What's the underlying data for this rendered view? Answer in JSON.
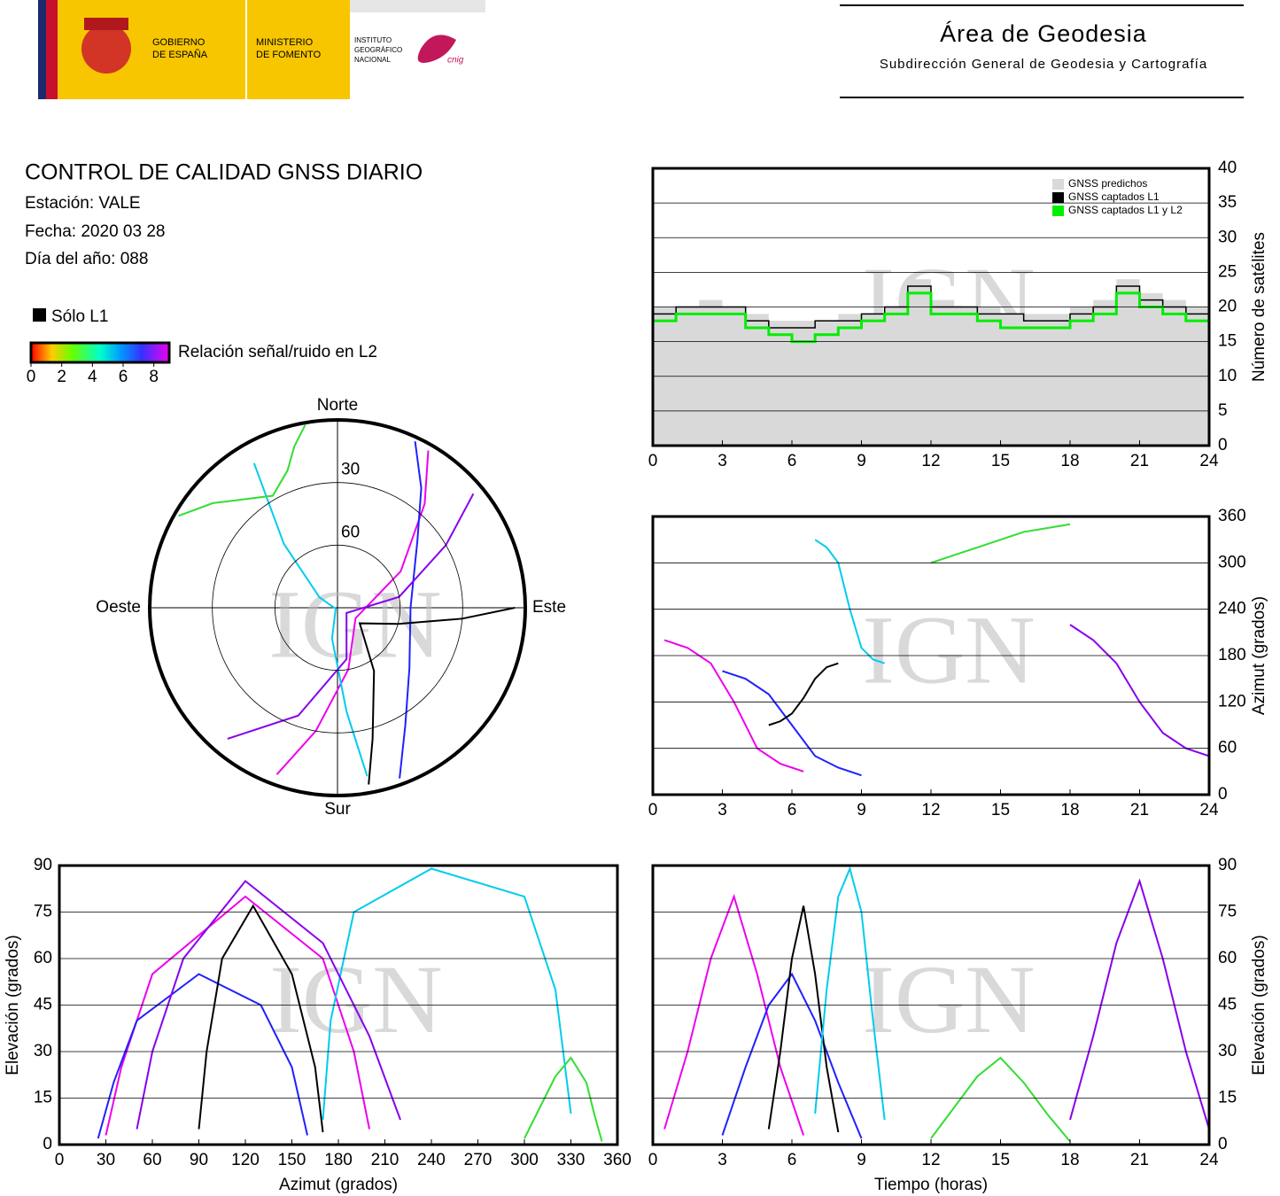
{
  "header": {
    "gov": [
      "GOBIERNO",
      "DE ESPAÑA"
    ],
    "ministry": [
      "MINISTERIO",
      "DE FOMENTO"
    ],
    "institute": [
      "INSTITUTO",
      "GEOGRÁFICO",
      "NACIONAL"
    ],
    "cnig": "cnig",
    "title": "Área de Geodesia",
    "subtitle": "Subdirección General de Geodesia y Cartografía"
  },
  "info": {
    "title": "CONTROL DE CALIDAD GNSS DIARIO",
    "station": "Estación: VALE",
    "date": "Fecha: 2020 03 28",
    "doy": "Día del año: 088"
  },
  "legend": {
    "solo_l1": "Sólo L1",
    "colorbar_label": "Relación señal/ruido en L2",
    "colorbar_lim": [
      0,
      9
    ],
    "colorbar_ticks": [
      0,
      2,
      4,
      6,
      8
    ]
  },
  "watermark": "IGN",
  "chart_data": [
    {
      "type": "step",
      "ylabel": "Número de satélites",
      "xlim": [
        0,
        24
      ],
      "xticks": [
        0,
        3,
        6,
        9,
        12,
        15,
        18,
        21,
        24
      ],
      "ylim": [
        0,
        40
      ],
      "yticks": [
        0,
        5,
        10,
        15,
        20,
        25,
        30,
        35,
        40
      ],
      "grid": true,
      "x": [
        0,
        1,
        2,
        3,
        4,
        5,
        6,
        7,
        8,
        9,
        10,
        11,
        12,
        13,
        14,
        15,
        16,
        17,
        18,
        19,
        20,
        21,
        22,
        23,
        24
      ],
      "series": [
        {
          "name": "GNSS predichos",
          "color": "#d9d9d9",
          "values": [
            20,
            20,
            21,
            20,
            19,
            18,
            18,
            18,
            19,
            19,
            20,
            24,
            21,
            20,
            20,
            19,
            19,
            19,
            20,
            21,
            24,
            22,
            21,
            20,
            20
          ]
        },
        {
          "name": "GNSS captados L1",
          "color": "#000000",
          "values": [
            19,
            20,
            20,
            20,
            18,
            17,
            17,
            18,
            18,
            19,
            20,
            23,
            20,
            20,
            19,
            19,
            18,
            18,
            19,
            20,
            23,
            21,
            20,
            19,
            19
          ]
        },
        {
          "name": "GNSS captados L1 y L2",
          "color": "#00ee00",
          "values": [
            18,
            19,
            19,
            19,
            17,
            16,
            15,
            16,
            17,
            18,
            19,
            22,
            19,
            19,
            18,
            17,
            17,
            17,
            18,
            19,
            22,
            20,
            19,
            18,
            18
          ]
        }
      ]
    },
    {
      "type": "polar",
      "directions": [
        "Norte",
        "Este",
        "Sur",
        "Oeste"
      ],
      "rticks": [
        30,
        60
      ],
      "rlim": [
        90,
        0
      ],
      "series": [
        {
          "color": "#ee00ee",
          "azimuth": [
            200,
            190,
            170,
            120,
            60,
            40,
            30
          ],
          "elevation": [
            5,
            30,
            60,
            80,
            55,
            25,
            3
          ]
        },
        {
          "color": "#2020ff",
          "azimuth": [
            160,
            150,
            130,
            90,
            50,
            35,
            25
          ],
          "elevation": [
            3,
            25,
            45,
            55,
            40,
            20,
            2
          ]
        },
        {
          "color": "#000000",
          "azimuth": [
            90,
            95,
            105,
            125,
            150,
            165,
            170
          ],
          "elevation": [
            5,
            30,
            60,
            77,
            55,
            25,
            4
          ]
        },
        {
          "color": "#00ccee",
          "azimuth": [
            330,
            320,
            300,
            240,
            190,
            175,
            170
          ],
          "elevation": [
            10,
            50,
            80,
            89,
            75,
            40,
            8
          ]
        },
        {
          "color": "#33dd33",
          "azimuth": [
            300,
            310,
            320,
            330,
            340,
            345,
            350
          ],
          "elevation": [
            2,
            12,
            22,
            28,
            20,
            10,
            1
          ]
        },
        {
          "color": "#8800ee",
          "azimuth": [
            220,
            200,
            170,
            120,
            80,
            60,
            50
          ],
          "elevation": [
            8,
            35,
            65,
            85,
            60,
            30,
            5
          ]
        }
      ]
    },
    {
      "type": "line",
      "ylabel": "Azimut (grados)",
      "xlim": [
        0,
        24
      ],
      "xticks": [
        0,
        3,
        6,
        9,
        12,
        15,
        18,
        21,
        24
      ],
      "ylim": [
        0,
        360
      ],
      "yticks": [
        0,
        60,
        120,
        180,
        240,
        300,
        360
      ],
      "grid": true,
      "series": [
        {
          "color": "#ee00ee",
          "x": [
            0.5,
            1.5,
            2.5,
            3.5,
            4.5,
            5.5,
            6.5
          ],
          "values": [
            200,
            190,
            170,
            120,
            60,
            40,
            30
          ]
        },
        {
          "color": "#2020ff",
          "x": [
            3,
            4,
            5,
            6,
            7,
            8,
            9
          ],
          "values": [
            160,
            150,
            130,
            90,
            50,
            35,
            25
          ]
        },
        {
          "color": "#000000",
          "x": [
            5,
            5.5,
            6,
            6.5,
            7,
            7.5,
            8
          ],
          "values": [
            90,
            95,
            105,
            125,
            150,
            165,
            170
          ]
        },
        {
          "color": "#00ccee",
          "x": [
            7,
            7.5,
            8,
            8.5,
            9,
            9.5,
            10
          ],
          "values": [
            330,
            320,
            300,
            240,
            190,
            175,
            170
          ]
        },
        {
          "color": "#33dd33",
          "x": [
            12,
            13,
            14,
            15,
            16,
            17,
            18
          ],
          "values": [
            300,
            310,
            320,
            330,
            340,
            345,
            350
          ]
        },
        {
          "color": "#8800ee",
          "x": [
            18,
            19,
            20,
            21,
            22,
            23,
            24
          ],
          "values": [
            220,
            200,
            170,
            120,
            80,
            60,
            50
          ]
        }
      ]
    },
    {
      "type": "line",
      "xlabel": "Azimut (grados)",
      "ylabel": "Elevación (grados)",
      "xlim": [
        0,
        360
      ],
      "xticks": [
        0,
        30,
        60,
        90,
        120,
        150,
        180,
        210,
        240,
        270,
        300,
        330,
        360
      ],
      "ylim": [
        0,
        90
      ],
      "yticks": [
        0,
        15,
        30,
        45,
        60,
        75,
        90
      ],
      "grid": true,
      "series": [
        {
          "color": "#ee00ee",
          "x": [
            200,
            190,
            170,
            120,
            60,
            40,
            30
          ],
          "values": [
            5,
            30,
            60,
            80,
            55,
            25,
            3
          ]
        },
        {
          "color": "#2020ff",
          "x": [
            160,
            150,
            130,
            90,
            50,
            35,
            25
          ],
          "values": [
            3,
            25,
            45,
            55,
            40,
            20,
            2
          ]
        },
        {
          "color": "#000000",
          "x": [
            90,
            95,
            105,
            125,
            150,
            165,
            170
          ],
          "values": [
            5,
            30,
            60,
            77,
            55,
            25,
            4
          ]
        },
        {
          "color": "#00ccee",
          "x": [
            330,
            320,
            300,
            240,
            190,
            175,
            170
          ],
          "values": [
            10,
            50,
            80,
            89,
            75,
            40,
            8
          ]
        },
        {
          "color": "#33dd33",
          "x": [
            300,
            310,
            320,
            330,
            340,
            345,
            350
          ],
          "values": [
            2,
            12,
            22,
            28,
            20,
            10,
            1
          ]
        },
        {
          "color": "#8800ee",
          "x": [
            220,
            200,
            170,
            120,
            80,
            60,
            50
          ],
          "values": [
            8,
            35,
            65,
            85,
            60,
            30,
            5
          ]
        }
      ]
    },
    {
      "type": "line",
      "xlabel": "Tiempo (horas)",
      "ylabel": "Elevación (grados)",
      "xlim": [
        0,
        24
      ],
      "xticks": [
        0,
        3,
        6,
        9,
        12,
        15,
        18,
        21,
        24
      ],
      "ylim": [
        0,
        90
      ],
      "yticks": [
        0,
        15,
        30,
        45,
        60,
        75,
        90
      ],
      "grid": true,
      "series": [
        {
          "color": "#ee00ee",
          "x": [
            0.5,
            1.5,
            2.5,
            3.5,
            4.5,
            5.5,
            6.5
          ],
          "values": [
            5,
            30,
            60,
            80,
            55,
            25,
            3
          ]
        },
        {
          "color": "#2020ff",
          "x": [
            3,
            4,
            5,
            6,
            7,
            8,
            9
          ],
          "values": [
            3,
            25,
            45,
            55,
            40,
            20,
            2
          ]
        },
        {
          "color": "#000000",
          "x": [
            5,
            5.5,
            6,
            6.5,
            7,
            7.5,
            8
          ],
          "values": [
            5,
            30,
            60,
            77,
            55,
            25,
            4
          ]
        },
        {
          "color": "#00ccee",
          "x": [
            7,
            7.5,
            8,
            8.5,
            9,
            9.5,
            10
          ],
          "values": [
            10,
            50,
            80,
            89,
            75,
            40,
            8
          ]
        },
        {
          "color": "#33dd33",
          "x": [
            12,
            13,
            14,
            15,
            16,
            17,
            18
          ],
          "values": [
            2,
            12,
            22,
            28,
            20,
            10,
            1
          ]
        },
        {
          "color": "#8800ee",
          "x": [
            18,
            19,
            20,
            21,
            22,
            23,
            24
          ],
          "values": [
            8,
            35,
            65,
            85,
            60,
            30,
            5
          ]
        }
      ]
    }
  ]
}
